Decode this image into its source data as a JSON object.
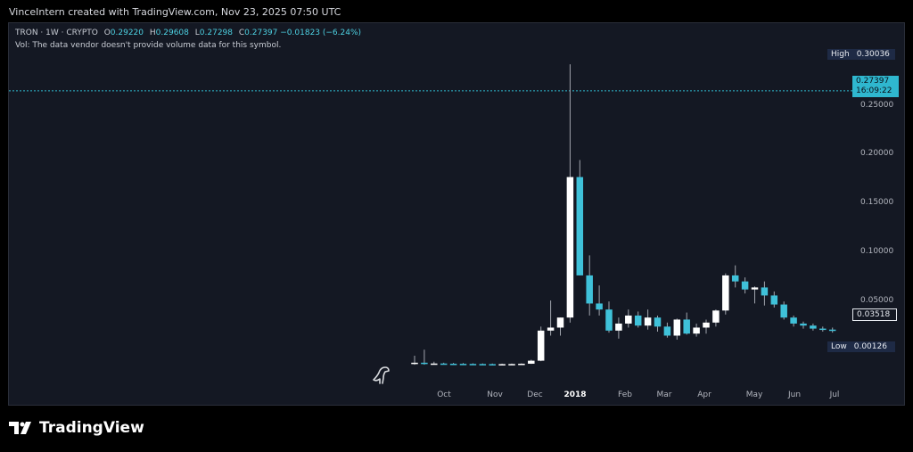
{
  "header": {
    "credit": "VinceIntern created with TradingView.com, Nov 23, 2025 07:50 UTC"
  },
  "legend": {
    "symbol": "TRON · 1W · CRYPTO",
    "open_label": "O",
    "open": "0.29220",
    "high_label": "H",
    "high": "0.29608",
    "low_label": "L",
    "low": "0.27298",
    "close_label": "C",
    "close": "0.27397",
    "change": "−0.01823 (−6.24%)",
    "volume_note": "Vol: The data vendor doesn't provide volume data for this symbol."
  },
  "tags": {
    "high_label": "High",
    "high_value": "0.30036",
    "last_value": "0.27397",
    "last_countdown": "16:09:22",
    "current_value": "0.03518",
    "low_label": "Low",
    "low_value": "0.00126"
  },
  "brand": {
    "name": "TradingView"
  },
  "colors": {
    "up": "#ffffff",
    "down": "#3fc1d9",
    "wick": "#a0a4ad",
    "lastline": "#2fb7cf"
  },
  "chart_data": {
    "type": "candlestick",
    "ylim": [
      -0.03,
      0.32
    ],
    "yticks": [
      "0.25000",
      "0.20000",
      "0.15000",
      "0.10000",
      "0.05000"
    ],
    "ytick_values": [
      0.25,
      0.2,
      0.15,
      0.1,
      0.05
    ],
    "xticks": [
      {
        "label": "Oct",
        "week": 3
      },
      {
        "label": "Nov",
        "week": 8
      },
      {
        "label": "Dec",
        "week": 12
      },
      {
        "label": "2018",
        "week": 16.5,
        "bold": true
      },
      {
        "label": "Feb",
        "week": 21.5
      },
      {
        "label": "Mar",
        "week": 25.5
      },
      {
        "label": "Apr",
        "week": 29.5
      },
      {
        "label": "May",
        "week": 34
      },
      {
        "label": "Jun",
        "week": 38.5
      },
      {
        "label": "Jul",
        "week": 43
      }
    ],
    "last_price": 0.27397,
    "candles": [
      {
        "o": 0.002,
        "h": 0.01,
        "l": 0.001,
        "c": 0.003
      },
      {
        "o": 0.003,
        "h": 0.016,
        "l": 0.001,
        "c": 0.002
      },
      {
        "o": 0.002,
        "h": 0.004,
        "l": 0.0012,
        "c": 0.0022
      },
      {
        "o": 0.0022,
        "h": 0.003,
        "l": 0.0015,
        "c": 0.002
      },
      {
        "o": 0.002,
        "h": 0.0028,
        "l": 0.0016,
        "c": 0.0019
      },
      {
        "o": 0.0019,
        "h": 0.0026,
        "l": 0.0014,
        "c": 0.0018
      },
      {
        "o": 0.0018,
        "h": 0.0024,
        "l": 0.0013,
        "c": 0.0017
      },
      {
        "o": 0.0017,
        "h": 0.0023,
        "l": 0.0013,
        "c": 0.0016
      },
      {
        "o": 0.0016,
        "h": 0.0022,
        "l": 0.0013,
        "c": 0.0015
      },
      {
        "o": 0.0015,
        "h": 0.0021,
        "l": 0.0013,
        "c": 0.0016
      },
      {
        "o": 0.0016,
        "h": 0.0022,
        "l": 0.0014,
        "c": 0.0017
      },
      {
        "o": 0.0017,
        "h": 0.0024,
        "l": 0.0015,
        "c": 0.002
      },
      {
        "o": 0.002,
        "h": 0.006,
        "l": 0.0018,
        "c": 0.005
      },
      {
        "o": 0.005,
        "h": 0.039,
        "l": 0.0045,
        "c": 0.035
      },
      {
        "o": 0.035,
        "h": 0.065,
        "l": 0.03,
        "c": 0.038
      },
      {
        "o": 0.038,
        "h": 0.048,
        "l": 0.03,
        "c": 0.048
      },
      {
        "o": 0.048,
        "h": 0.3003,
        "l": 0.043,
        "c": 0.188
      },
      {
        "o": 0.188,
        "h": 0.205,
        "l": 0.09,
        "c": 0.09
      },
      {
        "o": 0.09,
        "h": 0.11,
        "l": 0.05,
        "c": 0.062
      },
      {
        "o": 0.062,
        "h": 0.08,
        "l": 0.05,
        "c": 0.056
      },
      {
        "o": 0.056,
        "h": 0.064,
        "l": 0.033,
        "c": 0.035
      },
      {
        "o": 0.035,
        "h": 0.048,
        "l": 0.027,
        "c": 0.042
      },
      {
        "o": 0.042,
        "h": 0.056,
        "l": 0.038,
        "c": 0.05
      },
      {
        "o": 0.05,
        "h": 0.054,
        "l": 0.038,
        "c": 0.04
      },
      {
        "o": 0.04,
        "h": 0.056,
        "l": 0.036,
        "c": 0.048
      },
      {
        "o": 0.048,
        "h": 0.05,
        "l": 0.034,
        "c": 0.039
      },
      {
        "o": 0.039,
        "h": 0.043,
        "l": 0.028,
        "c": 0.03
      },
      {
        "o": 0.03,
        "h": 0.047,
        "l": 0.026,
        "c": 0.046
      },
      {
        "o": 0.046,
        "h": 0.053,
        "l": 0.031,
        "c": 0.032
      },
      {
        "o": 0.032,
        "h": 0.042,
        "l": 0.029,
        "c": 0.038
      },
      {
        "o": 0.038,
        "h": 0.046,
        "l": 0.032,
        "c": 0.043
      },
      {
        "o": 0.043,
        "h": 0.056,
        "l": 0.039,
        "c": 0.055
      },
      {
        "o": 0.055,
        "h": 0.092,
        "l": 0.051,
        "c": 0.09
      },
      {
        "o": 0.09,
        "h": 0.1,
        "l": 0.078,
        "c": 0.084
      },
      {
        "o": 0.084,
        "h": 0.088,
        "l": 0.072,
        "c": 0.076
      },
      {
        "o": 0.076,
        "h": 0.079,
        "l": 0.062,
        "c": 0.078
      },
      {
        "o": 0.078,
        "h": 0.084,
        "l": 0.06,
        "c": 0.07
      },
      {
        "o": 0.07,
        "h": 0.074,
        "l": 0.058,
        "c": 0.061
      },
      {
        "o": 0.061,
        "h": 0.064,
        "l": 0.046,
        "c": 0.048
      },
      {
        "o": 0.048,
        "h": 0.05,
        "l": 0.039,
        "c": 0.042
      },
      {
        "o": 0.042,
        "h": 0.044,
        "l": 0.037,
        "c": 0.04
      },
      {
        "o": 0.04,
        "h": 0.042,
        "l": 0.035,
        "c": 0.037
      },
      {
        "o": 0.037,
        "h": 0.039,
        "l": 0.034,
        "c": 0.036
      },
      {
        "o": 0.036,
        "h": 0.038,
        "l": 0.033,
        "c": 0.0352
      }
    ]
  }
}
